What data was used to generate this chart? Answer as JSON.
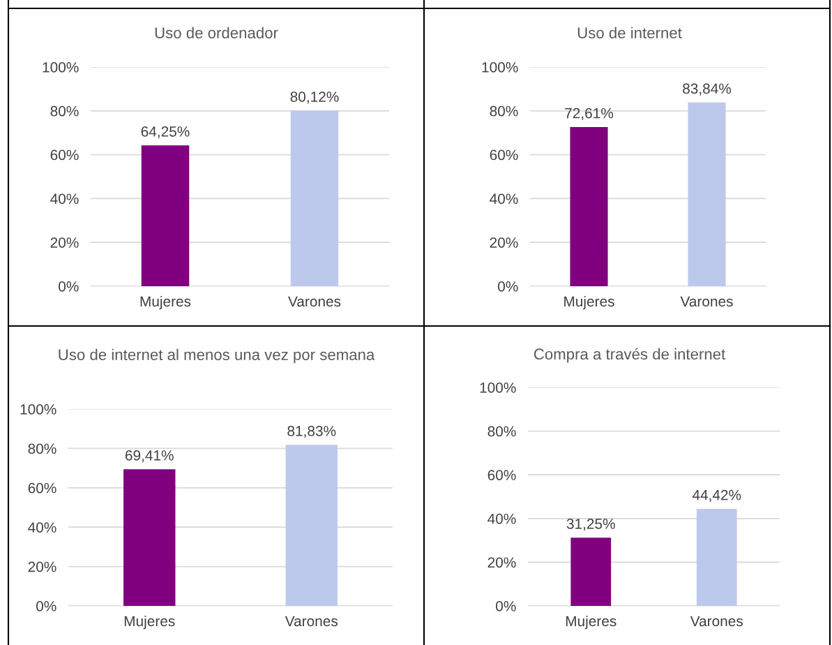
{
  "chart_data": [
    {
      "type": "bar",
      "title": "Uso de ordenador",
      "categories": [
        "Mujeres",
        "Varones"
      ],
      "values": [
        64.25,
        80.12
      ],
      "colors": [
        "#800080",
        "#bdc9ec"
      ],
      "value_labels": [
        "64,25%",
        "80,12%"
      ],
      "ylim": [
        0,
        100
      ],
      "yticks": [
        {
          "value": 0,
          "label": "0%"
        },
        {
          "value": 20,
          "label": "20%"
        },
        {
          "value": 40,
          "label": "40%"
        },
        {
          "value": 60,
          "label": "60%"
        },
        {
          "value": 80,
          "label": "80%"
        },
        {
          "value": 100,
          "label": "100%"
        }
      ],
      "grid": "y",
      "legend": false
    },
    {
      "type": "bar",
      "title": "Uso de internet",
      "categories": [
        "Mujeres",
        "Varones"
      ],
      "values": [
        72.61,
        83.84
      ],
      "colors": [
        "#800080",
        "#bdc9ec"
      ],
      "value_labels": [
        "72,61%",
        "83,84%"
      ],
      "ylim": [
        0,
        100
      ],
      "yticks": [
        {
          "value": 0,
          "label": "0%"
        },
        {
          "value": 20,
          "label": "20%"
        },
        {
          "value": 40,
          "label": "40%"
        },
        {
          "value": 60,
          "label": "60%"
        },
        {
          "value": 80,
          "label": "80%"
        },
        {
          "value": 100,
          "label": "100%"
        }
      ],
      "grid": "y",
      "legend": false
    },
    {
      "type": "bar",
      "title": "Uso de internet al menos una vez por semana",
      "categories": [
        "Mujeres",
        "Varones"
      ],
      "values": [
        69.41,
        81.83
      ],
      "colors": [
        "#800080",
        "#bdc9ec"
      ],
      "value_labels": [
        "69,41%",
        "81,83%"
      ],
      "ylim": [
        0,
        100
      ],
      "yticks": [
        {
          "value": 0,
          "label": "0%"
        },
        {
          "value": 20,
          "label": "20%"
        },
        {
          "value": 40,
          "label": "40%"
        },
        {
          "value": 60,
          "label": "60%"
        },
        {
          "value": 80,
          "label": "80%"
        },
        {
          "value": 100,
          "label": "100%"
        }
      ],
      "grid": "y",
      "legend": false
    },
    {
      "type": "bar",
      "title": "Compra a través de internet",
      "categories": [
        "Mujeres",
        "Varones"
      ],
      "values": [
        31.25,
        44.42
      ],
      "colors": [
        "#800080",
        "#bdc9ec"
      ],
      "value_labels": [
        "31,25%",
        "44,42%"
      ],
      "ylim": [
        0,
        100
      ],
      "yticks": [
        {
          "value": 0,
          "label": "0%"
        },
        {
          "value": 20,
          "label": "20%"
        },
        {
          "value": 40,
          "label": "40%"
        },
        {
          "value": 60,
          "label": "60%"
        },
        {
          "value": 80,
          "label": "80%"
        },
        {
          "value": 100,
          "label": "100%"
        }
      ],
      "grid": "y",
      "legend": false
    }
  ]
}
